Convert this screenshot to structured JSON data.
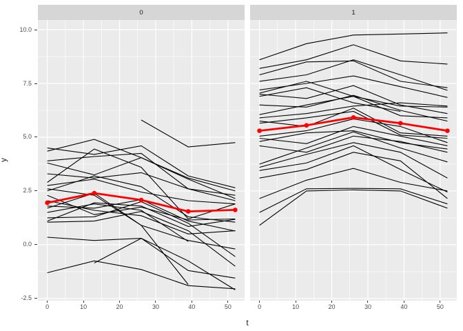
{
  "figure": {
    "background": "#ffffff",
    "panel_background": "#ebebeb",
    "strip_background": "#d6d6d6",
    "grid_color": "#ffffff",
    "line_color": "#000000",
    "mean_color": "#ff0000",
    "tick_color": "#333333",
    "tick_label_color": "#4d4d4d",
    "title_color": "#1a1a1a"
  },
  "facets": [
    {
      "label": "0"
    },
    {
      "label": "1"
    }
  ],
  "axes": {
    "x": {
      "label": "t",
      "tick_values": [
        0,
        10,
        20,
        30,
        40,
        50
      ],
      "tick_labels": [
        "0",
        "10",
        "20",
        "30",
        "40",
        "50"
      ],
      "minor": [
        5,
        15,
        25,
        35,
        45
      ],
      "limits": [
        -2.6,
        54.6
      ]
    },
    "y": {
      "label": "y",
      "tick_values": [
        10,
        7.5,
        5,
        2.5,
        0,
        -2.5
      ],
      "tick_labels": [
        "10.0",
        "7.5",
        "5.0",
        "2.5",
        "0.0",
        "-2.5"
      ],
      "minor": [
        8.75,
        6.25,
        3.75,
        1.25,
        -1.25
      ],
      "limits": [
        -2.6,
        10.45
      ]
    }
  },
  "chart_data": [
    {
      "type": "line",
      "facet_label": "0",
      "xlabel": "t",
      "ylabel": "y",
      "x_vertex_times": [
        0,
        13,
        26,
        39,
        52
      ],
      "xlim": [
        -2.6,
        54.6
      ],
      "ylim": [
        -2.6,
        10.45
      ],
      "grid": true,
      "series": [
        {
          "t": [
            0,
            13,
            26,
            39,
            52
          ],
          "y": [
            4.5,
            4.2,
            4.6,
            3.2,
            2.65
          ]
        },
        {
          "t": [
            0,
            13,
            26,
            39,
            52
          ],
          "y": [
            4.35,
            4.9,
            4.05,
            3.1,
            2.5
          ]
        },
        {
          "t": [
            0,
            13,
            26,
            39,
            52
          ],
          "y": [
            3.9,
            4.1,
            4.25,
            2.6,
            2.3
          ]
        },
        {
          "t": [
            0,
            13,
            26,
            39,
            52
          ],
          "y": [
            3.8,
            3.25,
            4.05,
            3.05,
            2.15
          ]
        },
        {
          "t": [
            0,
            13,
            26,
            39,
            52
          ],
          "y": [
            3.3,
            3.1,
            3.35,
            2.6,
            2.05
          ]
        },
        {
          "t": [
            0,
            13,
            26,
            39,
            52
          ],
          "y": [
            2.9,
            4.45,
            3.6,
            1.2,
            1.9
          ]
        },
        {
          "t": [
            0,
            13,
            26,
            39,
            52
          ],
          "y": [
            2.75,
            3.05,
            2.45,
            2.05,
            1.9
          ]
        },
        {
          "t": [
            0,
            13,
            26,
            39,
            52
          ],
          "y": [
            2.5,
            3.2,
            2.7,
            1.3,
            1.05
          ]
        },
        {
          "t": [
            0,
            13,
            26,
            39,
            52
          ],
          "y": [
            2.3,
            1.4,
            1.75,
            1.15,
            1.2
          ]
        },
        {
          "t": [
            0,
            13,
            26,
            39,
            52
          ],
          "y": [
            2.05,
            1.6,
            1.35,
            0.5,
            0.65
          ]
        },
        {
          "t": [
            0,
            13,
            26,
            39,
            52
          ],
          "y": [
            1.8,
            1.7,
            2.1,
            1.1,
            0.64
          ]
        },
        {
          "t": [
            0,
            13,
            26,
            39,
            52
          ],
          "y": [
            1.7,
            2.4,
            0.9,
            0.2,
            -0.2
          ]
        },
        {
          "t": [
            0,
            13,
            26,
            39
          ],
          "y": [
            1.5,
            1.9,
            1.6,
            0.15
          ]
        },
        {
          "t": [
            0,
            13,
            26,
            39,
            52
          ],
          "y": [
            1.25,
            1.3,
            2.0,
            1.0,
            -0.55
          ]
        },
        {
          "t": [
            0,
            13,
            26,
            39,
            52
          ],
          "y": [
            1.1,
            1.95,
            1.8,
            0.85,
            1.18
          ]
        },
        {
          "t": [
            0,
            13,
            26,
            39,
            52
          ],
          "y": [
            1.05,
            1.1,
            1.55,
            0.65,
            -1.0
          ]
        },
        {
          "t": [
            0,
            13,
            26,
            39
          ],
          "y": [
            2.6,
            2.3,
            0.9,
            -1.85
          ]
        },
        {
          "t": [
            0,
            13,
            26,
            39,
            52
          ],
          "y": [
            0.35,
            0.2,
            0.3,
            -1.2,
            -1.55
          ]
        },
        {
          "t": [
            13,
            26,
            39,
            52
          ],
          "y": [
            -0.85,
            0.3,
            -0.75,
            -2.1
          ]
        },
        {
          "t": [
            0,
            13,
            26,
            39,
            52
          ],
          "y": [
            -1.3,
            -0.75,
            -1.15,
            -1.9,
            -2.05
          ]
        },
        {
          "t": [
            26,
            39,
            52
          ],
          "y": [
            5.8,
            4.55,
            4.75
          ]
        }
      ],
      "mean_series": {
        "t": [
          0,
          13,
          26,
          39,
          52
        ],
        "y": [
          1.95,
          2.4,
          2.08,
          1.55,
          1.62
        ]
      }
    },
    {
      "type": "line",
      "facet_label": "1",
      "xlabel": "t",
      "ylabel": "y",
      "x_vertex_times": [
        0,
        13,
        26,
        39,
        52
      ],
      "xlim": [
        -2.6,
        54.6
      ],
      "ylim": [
        -2.6,
        10.45
      ],
      "grid": true,
      "series": [
        {
          "t": [
            0,
            13,
            26,
            39,
            52
          ],
          "y": [
            8.6,
            9.35,
            9.75,
            9.8,
            9.85
          ]
        },
        {
          "t": [
            0,
            13,
            26,
            39,
            52
          ],
          "y": [
            8.2,
            8.6,
            9.3,
            8.55,
            8.4
          ]
        },
        {
          "t": [
            0,
            13,
            26,
            39,
            52
          ],
          "y": [
            7.9,
            8.5,
            8.55,
            7.6,
            7.3
          ]
        },
        {
          "t": [
            0,
            13,
            26,
            39,
            52
          ],
          "y": [
            7.6,
            7.9,
            8.6,
            7.9,
            7.18
          ]
        },
        {
          "t": [
            0,
            13,
            26,
            39,
            52
          ],
          "y": [
            7.2,
            7.5,
            7.85,
            7.35,
            6.85
          ]
        },
        {
          "t": [
            0,
            13,
            26,
            39,
            52
          ],
          "y": [
            7.05,
            7.6,
            6.9,
            6.45,
            6.4
          ]
        },
        {
          "t": [
            0,
            13,
            26,
            39,
            52
          ],
          "y": [
            7.0,
            6.8,
            7.4,
            6.5,
            6.1
          ]
        },
        {
          "t": [
            0,
            13,
            26,
            39
          ],
          "y": [
            6.9,
            7.3,
            6.6,
            6.2
          ]
        },
        {
          "t": [
            0,
            13,
            26,
            39,
            52
          ],
          "y": [
            6.5,
            6.4,
            6.95,
            6.25,
            5.75
          ]
        },
        {
          "t": [
            0,
            13,
            26,
            39,
            52
          ],
          "y": [
            6.05,
            6.5,
            6.9,
            6.0,
            5.9
          ]
        },
        {
          "t": [
            0,
            13,
            26,
            39,
            52
          ],
          "y": [
            5.9,
            6.1,
            6.45,
            6.6,
            6.45
          ]
        },
        {
          "t": [
            0,
            13,
            26,
            39,
            52
          ],
          "y": [
            5.75,
            5.5,
            6.35,
            5.2,
            5.05
          ]
        },
        {
          "t": [
            0,
            13,
            26,
            39,
            52
          ],
          "y": [
            5.65,
            5.9,
            6.2,
            5.1,
            4.95
          ]
        },
        {
          "t": [
            0,
            13,
            26,
            39,
            52
          ],
          "y": [
            5.05,
            5.3,
            5.85,
            5.5,
            4.75
          ]
        },
        {
          "t": [
            0,
            13,
            26,
            39,
            52
          ],
          "y": [
            4.95,
            4.7,
            5.5,
            5.05,
            4.6
          ]
        },
        {
          "t": [
            0,
            13,
            26,
            39,
            52
          ],
          "y": [
            4.8,
            5.2,
            5.3,
            4.75,
            4.45
          ]
        },
        {
          "t": [
            0,
            13,
            26,
            39,
            52
          ],
          "y": [
            4.6,
            4.3,
            5.05,
            4.8,
            4.3
          ]
        },
        {
          "t": [
            0,
            13,
            26,
            39,
            52
          ],
          "y": [
            3.75,
            4.5,
            5.25,
            4.5,
            3.85
          ]
        },
        {
          "t": [
            0,
            13,
            26,
            39,
            52
          ],
          "y": [
            3.6,
            4.2,
            4.75,
            4.3,
            3.1
          ]
        },
        {
          "t": [
            0,
            13,
            26,
            39,
            52
          ],
          "y": [
            3.45,
            3.8,
            4.6,
            3.5,
            2.45
          ]
        },
        {
          "t": [
            0,
            13,
            26,
            39,
            52
          ],
          "y": [
            3.1,
            3.5,
            4.3,
            3.9,
            2.15
          ]
        },
        {
          "t": [
            0,
            13,
            26,
            39,
            52
          ],
          "y": [
            2.15,
            3.0,
            3.55,
            2.9,
            2.5
          ]
        },
        {
          "t": [
            0,
            13,
            26,
            39,
            52
          ],
          "y": [
            1.5,
            2.6,
            2.62,
            2.6,
            1.9
          ]
        },
        {
          "t": [
            0,
            13,
            26,
            39,
            52
          ],
          "y": [
            0.9,
            2.5,
            2.55,
            2.5,
            1.7
          ]
        }
      ],
      "mean_series": {
        "t": [
          0,
          13,
          26,
          39,
          52
        ],
        "y": [
          5.3,
          5.55,
          5.92,
          5.65,
          5.3
        ]
      }
    }
  ]
}
